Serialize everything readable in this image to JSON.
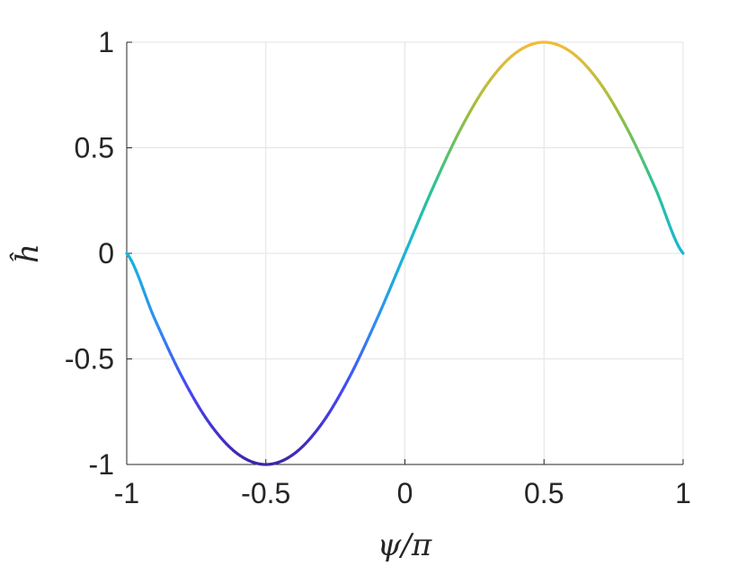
{
  "chart_data": {
    "type": "line",
    "title": "",
    "xlabel": "ψ/π",
    "ylabel": "ĥ",
    "xlim": [
      -1,
      1
    ],
    "ylim": [
      -1,
      1
    ],
    "xticks": [
      -1,
      -0.5,
      0,
      0.5,
      1
    ],
    "xtick_labels": [
      "-1",
      "-0.5",
      "0",
      "0.5",
      "1"
    ],
    "yticks": [
      -1,
      -0.5,
      0,
      0.5,
      1
    ],
    "ytick_labels": [
      "-1",
      "-0.5",
      "0",
      "0.5",
      "1"
    ],
    "grid": true,
    "colormap": "parula",
    "colormap_stops": [
      "#3e26a8",
      "#4743f6",
      "#2d8ef4",
      "#16b6d6",
      "#2dc38f",
      "#9bbd3f",
      "#f3bc3a"
    ],
    "series": [
      {
        "x": [
          -1,
          -0.9,
          -0.8,
          -0.7,
          -0.6,
          -0.5,
          -0.4,
          -0.3,
          -0.2,
          -0.1,
          0,
          0.1,
          0.2,
          0.3,
          0.4,
          0.5,
          0.6,
          0.7,
          0.8,
          0.9,
          1
        ],
        "y": [
          0,
          -0.309,
          -0.588,
          -0.809,
          -0.951,
          -1,
          -0.951,
          -0.809,
          -0.588,
          -0.309,
          0,
          0.309,
          0.588,
          0.809,
          0.951,
          1,
          0.951,
          0.809,
          0.588,
          0.309,
          0
        ]
      }
    ]
  }
}
